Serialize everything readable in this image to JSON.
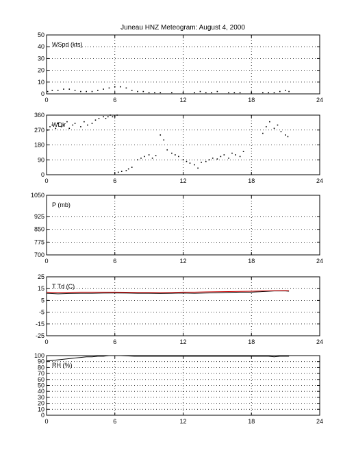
{
  "title": "Juneau HNZ Meteogram:     August  4, 2000",
  "chart_data": [
    {
      "type": "scatter",
      "label": "WSpd (kts)",
      "xlim": [
        0,
        24
      ],
      "ylim": [
        0,
        50
      ],
      "xticks": [
        0,
        6,
        12,
        18,
        24
      ],
      "yticks": [
        0,
        10,
        20,
        30,
        40,
        50
      ],
      "grid": true,
      "series": [
        {
          "color": "#000000",
          "x": [
            0.1,
            0.5,
            1.0,
            1.5,
            2.0,
            2.5,
            3.0,
            3.5,
            4.0,
            4.5,
            5.0,
            5.5,
            6.0,
            6.5,
            7.0,
            7.5,
            8.0,
            8.5,
            9.0,
            9.5,
            10.0,
            11.0,
            12.0,
            13.0,
            13.5,
            14.0,
            14.5,
            15.0,
            16.0,
            16.5,
            17.0,
            18.0,
            19.0,
            19.5,
            20.0,
            20.5,
            21.0,
            21.3
          ],
          "y": [
            2,
            3,
            3,
            4,
            4,
            3,
            2,
            2,
            2,
            3,
            4,
            5,
            6,
            6,
            5,
            3,
            2,
            2,
            1,
            1,
            1,
            1,
            1,
            1,
            2,
            1,
            1,
            2,
            1,
            1,
            1,
            1,
            1,
            1,
            1,
            2,
            3,
            2
          ]
        }
      ]
    },
    {
      "type": "scatter",
      "label": "WDir",
      "xlim": [
        0,
        24
      ],
      "ylim": [
        0,
        360
      ],
      "xticks": [
        0,
        6,
        12,
        18,
        24
      ],
      "yticks": [
        0,
        90,
        180,
        270,
        360
      ],
      "grid": true,
      "series": [
        {
          "color": "#000000",
          "x": [
            0.1,
            0.3,
            0.5,
            0.8,
            1.0,
            1.3,
            1.5,
            1.8,
            2.0,
            2.3,
            2.5,
            3.0,
            3.3,
            3.6,
            4.0,
            4.3,
            4.6,
            5.0,
            5.2,
            5.4,
            5.6,
            5.8,
            6.0,
            6.2,
            6.0,
            6.3,
            6.6,
            7.0,
            7.2,
            7.5,
            8.0,
            8.3,
            8.6,
            9.0,
            9.3,
            9.6,
            10.0,
            10.3,
            10.6,
            11.0,
            11.3,
            11.6,
            12.0,
            12.3,
            12.6,
            13.0,
            13.3,
            13.6,
            14.0,
            14.3,
            14.6,
            15.0,
            15.3,
            15.6,
            16.0,
            16.3,
            16.6,
            17.0,
            17.3,
            19.0,
            19.3,
            19.6,
            20.0,
            20.3,
            20.6,
            21.0,
            21.2
          ],
          "y": [
            270,
            290,
            300,
            280,
            310,
            290,
            300,
            320,
            280,
            300,
            310,
            290,
            320,
            300,
            310,
            330,
            340,
            350,
            340,
            350,
            360,
            350,
            350,
            360,
            10,
            15,
            20,
            25,
            35,
            45,
            90,
            100,
            110,
            120,
            100,
            115,
            240,
            210,
            150,
            130,
            120,
            110,
            90,
            80,
            70,
            60,
            40,
            75,
            80,
            90,
            100,
            95,
            110,
            120,
            100,
            130,
            120,
            110,
            140,
            250,
            290,
            320,
            280,
            300,
            260,
            240,
            230
          ]
        }
      ]
    },
    {
      "type": "scatter",
      "label": "P (mb)",
      "xlim": [
        0,
        24
      ],
      "ylim": [
        700,
        1050
      ],
      "xticks": [
        0,
        6,
        12,
        18,
        24
      ],
      "yticks": [
        700,
        775,
        850,
        925,
        1050
      ],
      "grid": true,
      "series": []
    },
    {
      "type": "line",
      "label": "T Td (C)",
      "xlim": [
        0,
        24
      ],
      "ylim": [
        -25,
        25
      ],
      "xticks": [
        0,
        6,
        12,
        18,
        24
      ],
      "yticks": [
        -25,
        -15,
        -5,
        5,
        15,
        25
      ],
      "grid": true,
      "series": [
        {
          "color": "#000000",
          "x": [
            0,
            1,
            2,
            3,
            4,
            5,
            6,
            7,
            8,
            9,
            10,
            11,
            12,
            13,
            14,
            15,
            16,
            17,
            18,
            19,
            20,
            21,
            21.3
          ],
          "y": [
            11,
            10.5,
            10.8,
            11,
            11,
            11.2,
            11.3,
            11.2,
            11,
            11,
            10.8,
            11,
            11.2,
            11,
            11.3,
            11.5,
            11.8,
            12,
            12,
            12.5,
            13,
            13,
            12.8
          ]
        },
        {
          "color": "#cc0000",
          "x": [
            0,
            1,
            2,
            3,
            4,
            5,
            6,
            7,
            8,
            9,
            10,
            11,
            12,
            13,
            14,
            15,
            16,
            17,
            18,
            19,
            20,
            21,
            21.3
          ],
          "y": [
            12,
            11.8,
            11.9,
            12,
            12,
            12,
            12,
            11.9,
            11.8,
            11.8,
            11.7,
            11.8,
            12,
            12,
            12.2,
            12.3,
            12.5,
            12.6,
            12.8,
            13,
            13.2,
            13.3,
            13.2
          ]
        }
      ]
    },
    {
      "type": "line",
      "label": "RH (%)",
      "xlim": [
        0,
        24
      ],
      "ylim": [
        0,
        100
      ],
      "xticks": [
        0,
        6,
        12,
        18,
        24
      ],
      "yticks": [
        0,
        10,
        20,
        30,
        40,
        50,
        60,
        70,
        80,
        90,
        100
      ],
      "grid": true,
      "series": [
        {
          "color": "#000000",
          "x": [
            0,
            0.5,
            1,
            1.5,
            2,
            2.5,
            3,
            3.5,
            4,
            4.5,
            5,
            5.5,
            6,
            6.5,
            7.7,
            8.2,
            8.7,
            9.2,
            9.6,
            19.5,
            20,
            20.5,
            21,
            21.3
          ],
          "y": [
            91,
            92,
            93,
            94,
            95,
            96,
            97,
            98,
            98,
            99,
            99,
            100,
            100,
            100,
            99,
            99,
            99,
            99,
            99,
            99,
            98,
            99,
            99,
            99
          ]
        }
      ]
    }
  ]
}
